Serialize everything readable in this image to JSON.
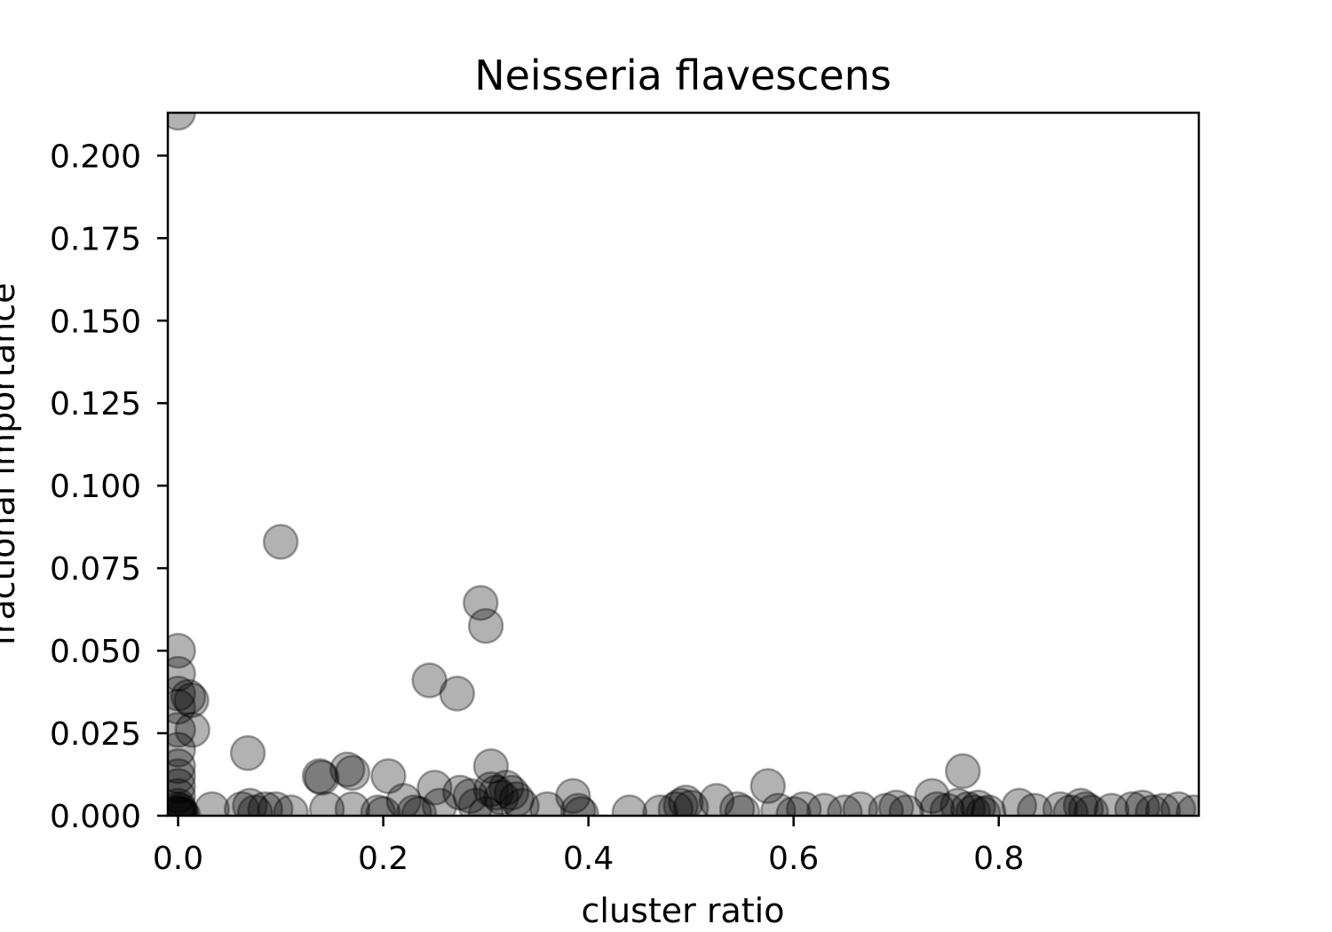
{
  "chart_data": {
    "type": "scatter",
    "title": "Neisseria flavescens",
    "xlabel": "cluster ratio",
    "ylabel": "fractional importance",
    "xlim": [
      -0.01,
      0.995
    ],
    "ylim": [
      0.0,
      0.213
    ],
    "xticks": [
      {
        "value": 0.0,
        "label": "0.0"
      },
      {
        "value": 0.2,
        "label": "0.2"
      },
      {
        "value": 0.4,
        "label": "0.4"
      },
      {
        "value": 0.6,
        "label": "0.6"
      },
      {
        "value": 0.8,
        "label": "0.8"
      }
    ],
    "yticks": [
      {
        "value": 0.0,
        "label": "0.000"
      },
      {
        "value": 0.025,
        "label": "0.025"
      },
      {
        "value": 0.05,
        "label": "0.050"
      },
      {
        "value": 0.075,
        "label": "0.075"
      },
      {
        "value": 0.1,
        "label": "0.100"
      },
      {
        "value": 0.125,
        "label": "0.125"
      },
      {
        "value": 0.15,
        "label": "0.150"
      },
      {
        "value": 0.175,
        "label": "0.175"
      },
      {
        "value": 0.2,
        "label": "0.200"
      }
    ],
    "grid": false,
    "legend": "none",
    "marker_color": "#000000",
    "marker_edge_color": "#000000",
    "marker_alpha": 0.3,
    "points": [
      [
        0.0,
        0.213
      ],
      [
        0.0,
        0.05
      ],
      [
        0.0,
        0.043
      ],
      [
        0.0,
        0.037
      ],
      [
        0.0,
        0.033
      ],
      [
        0.0,
        0.026
      ],
      [
        0.0,
        0.02
      ],
      [
        0.0,
        0.015
      ],
      [
        0.0,
        0.012
      ],
      [
        0.0,
        0.009
      ],
      [
        0.0,
        0.006
      ],
      [
        0.0,
        0.003
      ],
      [
        0.0,
        0.002
      ],
      [
        0.0,
        0.001
      ],
      [
        0.0,
        0.0005
      ],
      [
        0.002,
        0.0015
      ],
      [
        0.003,
        0.0005
      ],
      [
        0.005,
        0.0
      ],
      [
        0.01,
        0.036
      ],
      [
        0.013,
        0.035
      ],
      [
        0.014,
        0.026
      ],
      [
        0.033,
        0.002
      ],
      [
        0.068,
        0.019
      ],
      [
        0.062,
        0.002
      ],
      [
        0.07,
        0.003
      ],
      [
        0.075,
        0.001
      ],
      [
        0.085,
        0.002
      ],
      [
        0.095,
        0.002
      ],
      [
        0.1,
        0.083
      ],
      [
        0.11,
        0.001
      ],
      [
        0.138,
        0.012
      ],
      [
        0.14,
        0.0115
      ],
      [
        0.145,
        0.002
      ],
      [
        0.165,
        0.014
      ],
      [
        0.17,
        0.013
      ],
      [
        0.17,
        0.002
      ],
      [
        0.195,
        0.001
      ],
      [
        0.2,
        0.0005
      ],
      [
        0.205,
        0.012
      ],
      [
        0.22,
        0.0045
      ],
      [
        0.23,
        0.001
      ],
      [
        0.235,
        0.0005
      ],
      [
        0.245,
        0.041
      ],
      [
        0.25,
        0.0085
      ],
      [
        0.255,
        0.003
      ],
      [
        0.272,
        0.037
      ],
      [
        0.275,
        0.007
      ],
      [
        0.285,
        0.006
      ],
      [
        0.29,
        0.003
      ],
      [
        0.295,
        0.0645
      ],
      [
        0.3,
        0.0575
      ],
      [
        0.3,
        0.0005
      ],
      [
        0.305,
        0.015
      ],
      [
        0.305,
        0.008
      ],
      [
        0.31,
        0.007
      ],
      [
        0.315,
        0.0055
      ],
      [
        0.32,
        0.0085
      ],
      [
        0.325,
        0.007
      ],
      [
        0.33,
        0.005
      ],
      [
        0.335,
        0.003
      ],
      [
        0.36,
        0.002
      ],
      [
        0.385,
        0.006
      ],
      [
        0.39,
        0.0015
      ],
      [
        0.393,
        0.0005
      ],
      [
        0.44,
        0.001
      ],
      [
        0.47,
        0.001
      ],
      [
        0.485,
        0.002
      ],
      [
        0.49,
        0.003
      ],
      [
        0.495,
        0.004
      ],
      [
        0.5,
        0.0025
      ],
      [
        0.525,
        0.0045
      ],
      [
        0.545,
        0.002
      ],
      [
        0.55,
        0.001
      ],
      [
        0.575,
        0.009
      ],
      [
        0.585,
        0.0015
      ],
      [
        0.6,
        0.0005
      ],
      [
        0.61,
        0.002
      ],
      [
        0.63,
        0.0015
      ],
      [
        0.65,
        0.001
      ],
      [
        0.665,
        0.002
      ],
      [
        0.69,
        0.0015
      ],
      [
        0.7,
        0.0025
      ],
      [
        0.71,
        0.001
      ],
      [
        0.735,
        0.006
      ],
      [
        0.74,
        0.002
      ],
      [
        0.75,
        0.0015
      ],
      [
        0.76,
        0.003
      ],
      [
        0.765,
        0.0135
      ],
      [
        0.77,
        0.002
      ],
      [
        0.775,
        0.001
      ],
      [
        0.78,
        0.0025
      ],
      [
        0.785,
        0.0005
      ],
      [
        0.79,
        0.001
      ],
      [
        0.82,
        0.003
      ],
      [
        0.835,
        0.0015
      ],
      [
        0.86,
        0.002
      ],
      [
        0.87,
        0.001
      ],
      [
        0.88,
        0.003
      ],
      [
        0.885,
        0.002
      ],
      [
        0.89,
        0.001
      ],
      [
        0.91,
        0.0015
      ],
      [
        0.93,
        0.002
      ],
      [
        0.94,
        0.0025
      ],
      [
        0.95,
        0.001
      ],
      [
        0.96,
        0.0015
      ],
      [
        0.975,
        0.002
      ],
      [
        0.99,
        0.001
      ]
    ]
  }
}
